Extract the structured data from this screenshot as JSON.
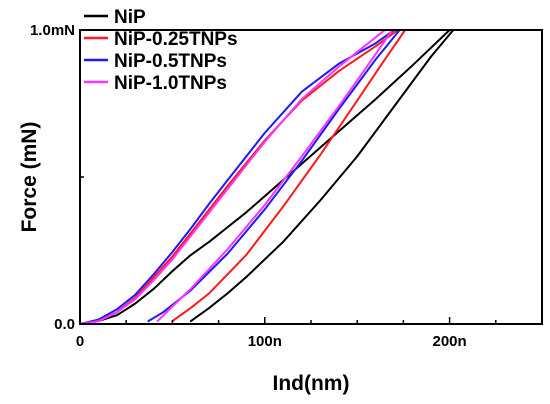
{
  "chart_data": {
    "type": "line",
    "xlabel": "Ind(nm)",
    "ylabel": "Force (mN)",
    "xlim": [
      0,
      250
    ],
    "ylim": [
      0,
      1.0
    ],
    "x_ticks": [
      {
        "value": 0,
        "label": "0"
      },
      {
        "value": 100,
        "label": "100n"
      },
      {
        "value": 200,
        "label": "200n"
      }
    ],
    "x_minor_ticks": [
      25,
      50,
      75,
      125,
      150,
      175,
      225,
      250
    ],
    "y_ticks": [
      {
        "value": 0,
        "label": "0.0"
      },
      {
        "value": 1.0,
        "label": "1.0mN"
      }
    ],
    "y_minor_ticks": [
      0.5
    ],
    "grid": false,
    "legend_position": "top-left",
    "series": [
      {
        "name": "NiP",
        "color": "#000000",
        "loading": [
          [
            0,
            0
          ],
          [
            10,
            0.01
          ],
          [
            20,
            0.03
          ],
          [
            30,
            0.07
          ],
          [
            40,
            0.12
          ],
          [
            50,
            0.18
          ],
          [
            60,
            0.235
          ],
          [
            70,
            0.28
          ],
          [
            80,
            0.33
          ],
          [
            90,
            0.38
          ],
          [
            100,
            0.435
          ],
          [
            120,
            0.545
          ],
          [
            140,
            0.655
          ],
          [
            160,
            0.765
          ],
          [
            180,
            0.88
          ],
          [
            200,
            1.0
          ]
        ],
        "unloading": [
          [
            202,
            1.0
          ],
          [
            190,
            0.91
          ],
          [
            170,
            0.74
          ],
          [
            150,
            0.57
          ],
          [
            130,
            0.42
          ],
          [
            110,
            0.28
          ],
          [
            90,
            0.16
          ],
          [
            80,
            0.105
          ],
          [
            70,
            0.055
          ],
          [
            60,
            0.01
          ]
        ]
      },
      {
        "name": "NiP-0.25TNPs",
        "color": "#ff1a1a",
        "loading": [
          [
            0,
            0
          ],
          [
            10,
            0.01
          ],
          [
            20,
            0.04
          ],
          [
            30,
            0.09
          ],
          [
            40,
            0.16
          ],
          [
            50,
            0.23
          ],
          [
            60,
            0.31
          ],
          [
            70,
            0.39
          ],
          [
            80,
            0.47
          ],
          [
            100,
            0.625
          ],
          [
            120,
            0.76
          ],
          [
            140,
            0.86
          ],
          [
            160,
            0.945
          ],
          [
            172,
            1.0
          ]
        ],
        "unloading": [
          [
            176,
            1.0
          ],
          [
            165,
            0.9
          ],
          [
            150,
            0.76
          ],
          [
            130,
            0.575
          ],
          [
            110,
            0.4
          ],
          [
            90,
            0.235
          ],
          [
            70,
            0.105
          ],
          [
            60,
            0.055
          ],
          [
            50,
            0.01
          ]
        ]
      },
      {
        "name": "NiP-0.5TNPs",
        "color": "#1a1aff",
        "loading": [
          [
            0,
            0
          ],
          [
            10,
            0.015
          ],
          [
            20,
            0.05
          ],
          [
            30,
            0.1
          ],
          [
            40,
            0.17
          ],
          [
            50,
            0.245
          ],
          [
            60,
            0.325
          ],
          [
            70,
            0.41
          ],
          [
            80,
            0.49
          ],
          [
            100,
            0.65
          ],
          [
            120,
            0.79
          ],
          [
            140,
            0.885
          ],
          [
            160,
            0.955
          ],
          [
            170,
            1.0
          ]
        ],
        "unloading": [
          [
            173,
            1.0
          ],
          [
            160,
            0.9
          ],
          [
            140,
            0.73
          ],
          [
            120,
            0.555
          ],
          [
            100,
            0.39
          ],
          [
            80,
            0.24
          ],
          [
            60,
            0.115
          ],
          [
            45,
            0.04
          ],
          [
            37,
            0.01
          ]
        ]
      },
      {
        "name": "NiP-1.0TNPs",
        "color": "#ff33ff",
        "loading": [
          [
            0,
            0
          ],
          [
            10,
            0.01
          ],
          [
            20,
            0.04
          ],
          [
            30,
            0.085
          ],
          [
            40,
            0.15
          ],
          [
            50,
            0.22
          ],
          [
            60,
            0.3
          ],
          [
            70,
            0.38
          ],
          [
            80,
            0.46
          ],
          [
            100,
            0.62
          ],
          [
            120,
            0.765
          ],
          [
            140,
            0.875
          ],
          [
            155,
            0.95
          ],
          [
            165,
            1.0
          ]
        ],
        "unloading": [
          [
            169,
            1.0
          ],
          [
            158,
            0.9
          ],
          [
            140,
            0.74
          ],
          [
            120,
            0.57
          ],
          [
            100,
            0.405
          ],
          [
            80,
            0.255
          ],
          [
            60,
            0.12
          ],
          [
            50,
            0.06
          ],
          [
            42,
            0.01
          ]
        ]
      }
    ]
  }
}
